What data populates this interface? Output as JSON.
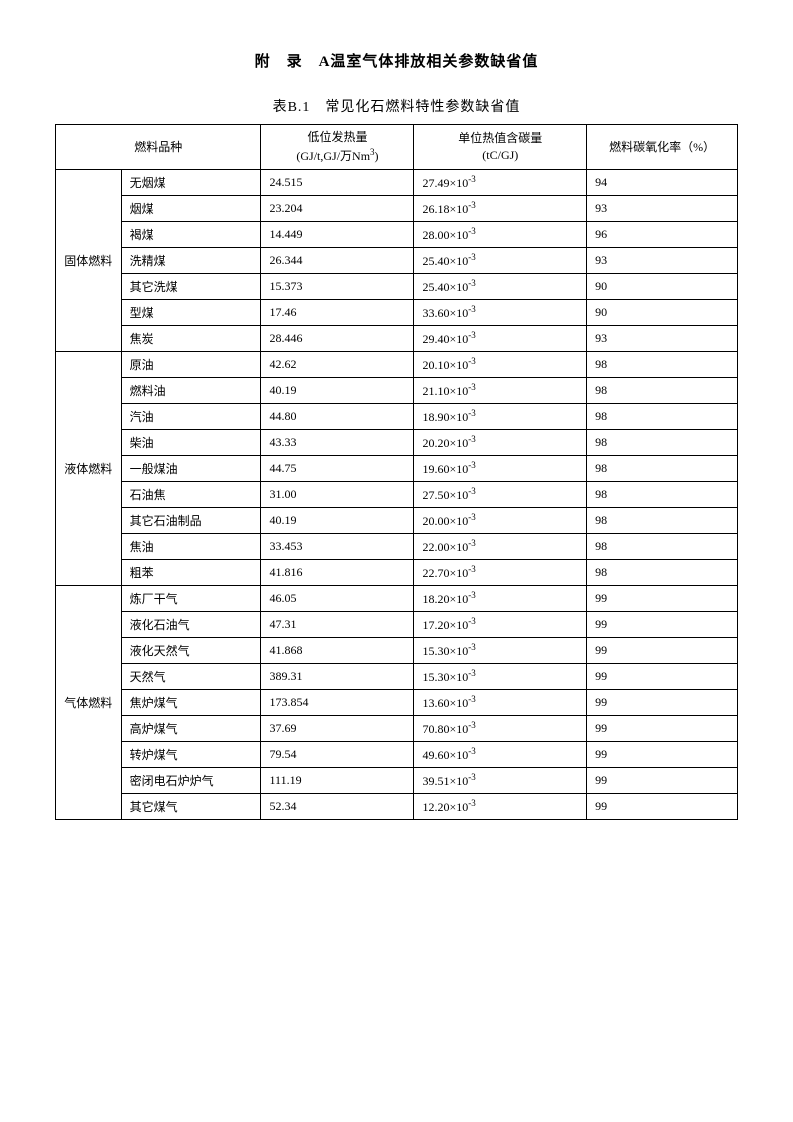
{
  "title": "附　录　A温室气体排放相关参数缺省值",
  "subtitle": "表B.1　常见化石燃料特性参数缺省值",
  "headers": {
    "fuel_type": "燃料品种",
    "heating_value": "低位发热量",
    "heating_unit_prefix": "(GJ/t,GJ/万Nm",
    "heating_unit_exp": "3",
    "heating_unit_suffix": ")",
    "carbon_content": "单位热值含碳量",
    "carbon_unit": "(tC/GJ)",
    "oxidation_rate": "燃料碳氧化率（%）"
  },
  "exp_text": "-3",
  "categories": [
    {
      "name": "固体燃料",
      "rows": [
        {
          "fuel": "无烟煤",
          "heating": "24.515",
          "carbon_base": "27.49×10",
          "rate": "94"
        },
        {
          "fuel": "烟煤",
          "heating": "23.204",
          "carbon_base": "26.18×10",
          "rate": "93"
        },
        {
          "fuel": "褐煤",
          "heating": "14.449",
          "carbon_base": "28.00×10",
          "rate": "96"
        },
        {
          "fuel": "洗精煤",
          "heating": "26.344",
          "carbon_base": "25.40×10",
          "rate": "93"
        },
        {
          "fuel": "其它洗煤",
          "heating": "15.373",
          "carbon_base": "25.40×10",
          "rate": "90"
        },
        {
          "fuel": "型煤",
          "heating": "17.46",
          "carbon_base": "33.60×10",
          "rate": "90"
        },
        {
          "fuel": "焦炭",
          "heating": "28.446",
          "carbon_base": "29.40×10",
          "rate": "93"
        }
      ]
    },
    {
      "name": "液体燃料",
      "rows": [
        {
          "fuel": "原油",
          "heating": "42.62",
          "carbon_base": "20.10×10",
          "rate": "98"
        },
        {
          "fuel": "燃料油",
          "heating": "40.19",
          "carbon_base": "21.10×10",
          "rate": "98"
        },
        {
          "fuel": "汽油",
          "heating": "44.80",
          "carbon_base": "18.90×10",
          "rate": "98"
        },
        {
          "fuel": "柴油",
          "heating": "43.33",
          "carbon_base": "20.20×10",
          "rate": "98"
        },
        {
          "fuel": "一般煤油",
          "heating": "44.75",
          "carbon_base": "19.60×10",
          "rate": "98"
        },
        {
          "fuel": "石油焦",
          "heating": "31.00",
          "carbon_base": "27.50×10",
          "rate": "98"
        },
        {
          "fuel": "其它石油制品",
          "heating": "40.19",
          "carbon_base": "20.00×10",
          "rate": "98"
        },
        {
          "fuel": "焦油",
          "heating": "33.453",
          "carbon_base": "22.00×10",
          "rate": "98"
        },
        {
          "fuel": "粗苯",
          "heating": "41.816",
          "carbon_base": "22.70×10",
          "rate": "98"
        }
      ]
    },
    {
      "name": "气体燃料",
      "rows": [
        {
          "fuel": "炼厂干气",
          "heating": "46.05",
          "carbon_base": "18.20×10",
          "rate": "99"
        },
        {
          "fuel": "液化石油气",
          "heating": "47.31",
          "carbon_base": "17.20×10",
          "rate": "99"
        },
        {
          "fuel": "液化天然气",
          "heating": "41.868",
          "carbon_base": "15.30×10",
          "rate": "99"
        },
        {
          "fuel": "天然气",
          "heating": "389.31",
          "carbon_base": "15.30×10",
          "rate": "99"
        },
        {
          "fuel": "焦炉煤气",
          "heating": "173.854",
          "carbon_base": "13.60×10",
          "rate": "99"
        },
        {
          "fuel": "高炉煤气",
          "heating": "37.69",
          "carbon_base": "70.80×10",
          "rate": "99"
        },
        {
          "fuel": "转炉煤气",
          "heating": "79.54",
          "carbon_base": "49.60×10",
          "rate": "99"
        },
        {
          "fuel": "密闭电石炉炉气",
          "heating": "111.19",
          "carbon_base": "39.51×10",
          "rate": "99"
        },
        {
          "fuel": "其它煤气",
          "heating": "52.34",
          "carbon_base": "12.20×10",
          "rate": "99"
        }
      ]
    }
  ]
}
